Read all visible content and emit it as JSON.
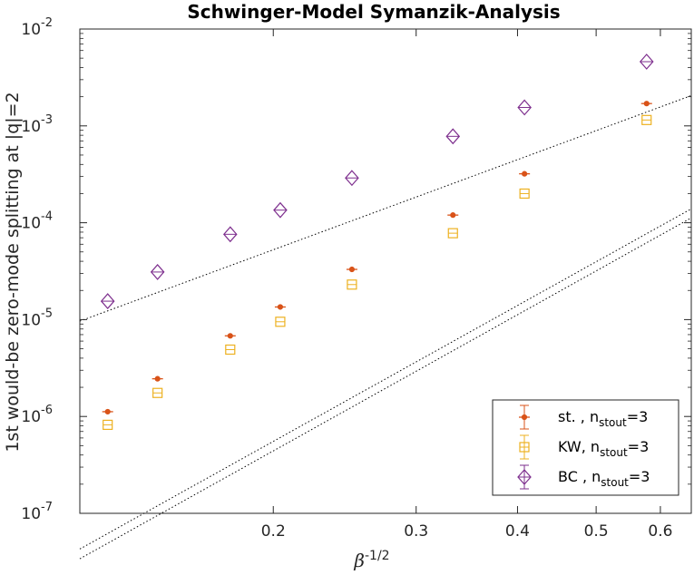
{
  "chart_data": {
    "type": "scatter",
    "title": "Schwinger-Model Symanzik-Analysis",
    "xlabel": {
      "base": "β",
      "sup": "-1/2"
    },
    "ylabel": "1st would-be zero-mode splitting at |q|=2",
    "xscale": "log",
    "yscale": "log",
    "xlim": [
      0.1155,
      0.655
    ],
    "ylim": [
      1e-07,
      0.01
    ],
    "x_ticks": [
      0.2,
      0.3,
      0.4,
      0.5,
      0.6
    ],
    "x_tick_labels": [
      "0.2",
      "0.3",
      "0.4",
      "0.5",
      "0.6"
    ],
    "y_ticks": [
      1e-07,
      1e-06,
      1e-05,
      0.0001,
      0.001,
      0.01
    ],
    "y_tick_labels": [
      {
        "base": "10",
        "exp": "-7"
      },
      {
        "base": "10",
        "exp": "-6"
      },
      {
        "base": "10",
        "exp": "-5"
      },
      {
        "base": "10",
        "exp": "-4"
      },
      {
        "base": "10",
        "exp": "-3"
      },
      {
        "base": "10",
        "exp": "-2"
      }
    ],
    "grid": false,
    "legend_position": "bottom-right",
    "series": [
      {
        "name": "st. , n_stout=3",
        "legend": {
          "prefix": "st. , n",
          "sub": "stout",
          "suffix": "=3"
        },
        "marker": "dot",
        "color": "#d95319",
        "x": [
          0.125,
          0.144,
          0.177,
          0.204,
          0.25,
          0.333,
          0.408,
          0.577
        ],
        "y": [
          1.12e-06,
          2.45e-06,
          6.8e-06,
          1.35e-05,
          3.3e-05,
          0.00012,
          0.00032,
          0.0017
        ],
        "fit": {
          "a": 0.001,
          "b": 4.66
        }
      },
      {
        "name": "KW, n_stout=3",
        "legend": {
          "prefix": "KW, n",
          "sub": "stout",
          "suffix": "=3"
        },
        "marker": "square",
        "color": "#edb120",
        "x": [
          0.125,
          0.144,
          0.177,
          0.204,
          0.25,
          0.333,
          0.408,
          0.577
        ],
        "y": [
          8.2e-07,
          1.75e-06,
          4.9e-06,
          9.5e-06,
          2.3e-05,
          7.8e-05,
          0.0002,
          0.00115
        ],
        "fit": {
          "a": 0.00081,
          "b": 4.67
        }
      },
      {
        "name": "BC , n_stout=3",
        "legend": {
          "prefix": "BC , n",
          "sub": "stout",
          "suffix": "=3"
        },
        "marker": "diamond",
        "color": "#7e2f8e",
        "x": [
          0.125,
          0.144,
          0.177,
          0.204,
          0.25,
          0.333,
          0.408,
          0.577
        ],
        "y": [
          1.55e-05,
          3.1e-05,
          7.6e-05,
          0.000135,
          0.00029,
          0.00078,
          0.00155,
          0.0046
        ],
        "fit": {
          "a": 0.0076,
          "b": 3.09
        }
      }
    ]
  },
  "colors": {
    "axis": "#262626",
    "fit_line": "#000000"
  }
}
